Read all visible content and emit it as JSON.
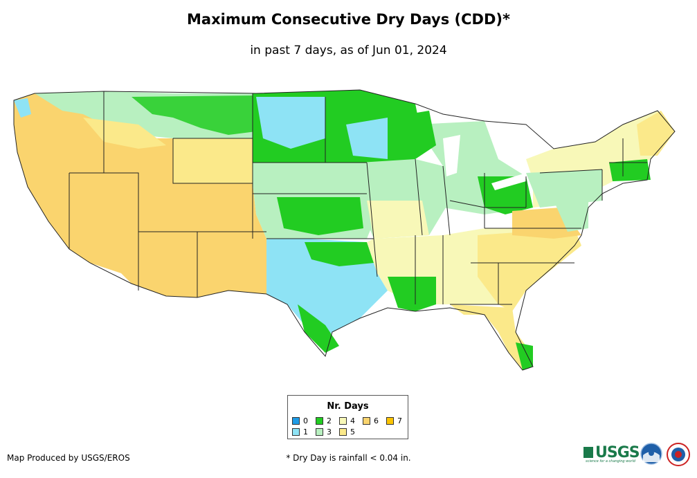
{
  "title": "Maximum Consecutive Dry Days (CDD)*",
  "subtitle": "in past 7 days, as of Jun 01, 2024",
  "legend": {
    "title": "Nr. Days",
    "items": [
      {
        "label": "0",
        "color": "#1e9be6"
      },
      {
        "label": "1",
        "color": "#8ee3f5"
      },
      {
        "label": "2",
        "color": "#22cc22"
      },
      {
        "label": "3",
        "color": "#b8f0c0"
      },
      {
        "label": "4",
        "color": "#f8f8b8"
      },
      {
        "label": "5",
        "color": "#fbe98a"
      },
      {
        "label": "6",
        "color": "#fad46e"
      },
      {
        "label": "7",
        "color": "#fbc400"
      }
    ]
  },
  "credit": "Map Produced by USGS/EROS",
  "footnote": "* Dry Day is rainfall < 0.04 in.",
  "logos": {
    "usgs": "USGS",
    "usgs_tagline": "science for a changing world"
  }
}
